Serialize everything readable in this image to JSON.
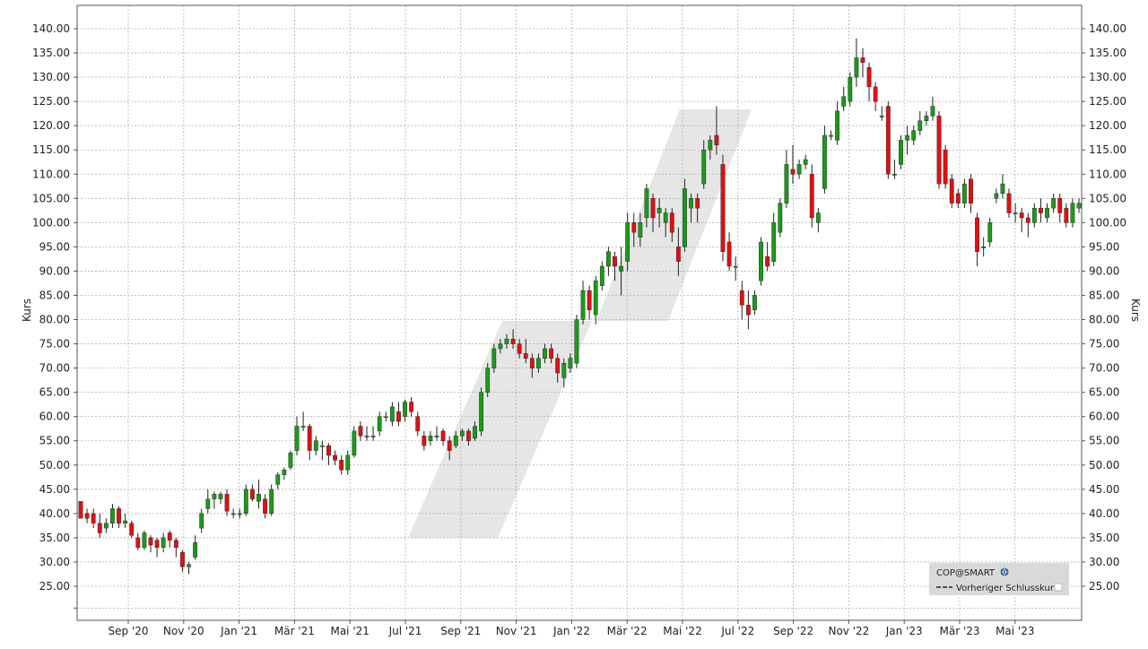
{
  "chart_data": {
    "type": "candlestick",
    "symbol": "COP@SMART",
    "ylabel_left": "Kurs",
    "ylabel_right": "Kurs",
    "ylim": [
      20,
      142
    ],
    "y_ticks": [
      "25.00",
      "30.00",
      "35.00",
      "40.00",
      "45.00",
      "50.00",
      "55.00",
      "60.00",
      "65.00",
      "70.00",
      "75.00",
      "80.00",
      "85.00",
      "90.00",
      "95.00",
      "100.00",
      "105.00",
      "110.00",
      "115.00",
      "120.00",
      "125.00",
      "130.00",
      "135.00",
      "140.00"
    ],
    "x_ticks": [
      "Sep '20",
      "Nov '20",
      "Jan '21",
      "Mär '21",
      "Mai '21",
      "Jul '21",
      "Sep '21",
      "Nov '21",
      "Jan '22",
      "Mär '22",
      "Mai '22",
      "Jul '22",
      "Sep '22",
      "Nov '22",
      "Jan '23",
      "Mär '23",
      "Mai '23"
    ],
    "grid": true,
    "legend": {
      "position": "bottom-right",
      "title": "COP@SMART",
      "items": [
        "Vorheriger Schlusskurs"
      ]
    },
    "colors": {
      "up": "#1a9a1a",
      "down": "#e01010",
      "wick": "#222222",
      "grid": "#b0b0b0",
      "channel": "#e8e8e8",
      "legend_bg": "#d9d9d9"
    },
    "series": [
      {
        "values": [
          42.5,
          39,
          41,
          39
        ]
      },
      {
        "values": [
          40,
          39,
          41,
          38
        ]
      },
      {
        "values": [
          40,
          38,
          41,
          37
        ]
      },
      {
        "values": [
          38,
          36,
          40,
          35
        ]
      },
      {
        "values": [
          37,
          38,
          39,
          36
        ]
      },
      {
        "values": [
          38,
          41,
          42,
          37
        ]
      },
      {
        "values": [
          41,
          38,
          41.5,
          37
        ]
      },
      {
        "values": [
          38,
          38.5,
          40,
          37
        ]
      },
      {
        "values": [
          38,
          35.5,
          38.5,
          35
        ]
      },
      {
        "values": [
          35,
          33,
          36,
          32.5
        ]
      },
      {
        "values": [
          33,
          36,
          36.5,
          32.5
        ]
      },
      {
        "values": [
          35,
          33.5,
          35.5,
          32
        ]
      },
      {
        "values": [
          34.5,
          33,
          35,
          31
        ]
      },
      {
        "values": [
          33,
          35,
          36,
          32
        ]
      },
      {
        "values": [
          36,
          34.5,
          36.5,
          33
        ]
      },
      {
        "values": [
          34.5,
          33,
          35,
          31
        ]
      },
      {
        "values": [
          32,
          29,
          32.5,
          28
        ]
      },
      {
        "values": [
          29,
          29.5,
          30,
          27.5
        ]
      },
      {
        "values": [
          31,
          34,
          35.5,
          30.5
        ]
      },
      {
        "values": [
          37,
          40,
          41,
          36
        ]
      },
      {
        "values": [
          41,
          43,
          45,
          40
        ]
      },
      {
        "values": [
          43,
          44,
          44.5,
          41
        ]
      },
      {
        "values": [
          43,
          44,
          44.5,
          42
        ]
      },
      {
        "values": [
          44,
          40.5,
          45,
          39.5
        ]
      },
      {
        "values": [
          40,
          40,
          41,
          39
        ]
      },
      {
        "values": [
          40,
          40,
          41,
          39
        ]
      },
      {
        "values": [
          40,
          45,
          46,
          39.5
        ]
      },
      {
        "values": [
          45,
          43,
          46,
          42.5
        ]
      },
      {
        "values": [
          42.5,
          44,
          47,
          41
        ]
      },
      {
        "values": [
          43,
          40,
          44,
          39
        ]
      },
      {
        "values": [
          40,
          45,
          46,
          39.5
        ]
      },
      {
        "values": [
          46,
          48,
          48.5,
          45
        ]
      },
      {
        "values": [
          48,
          49,
          49.5,
          47
        ]
      },
      {
        "values": [
          49.5,
          52.5,
          53,
          49
        ]
      },
      {
        "values": [
          53,
          58,
          60,
          52
        ]
      },
      {
        "values": [
          58,
          58,
          61,
          57
        ]
      },
      {
        "values": [
          58,
          53,
          58.5,
          51
        ]
      },
      {
        "values": [
          53,
          55,
          56,
          52
        ]
      },
      {
        "values": [
          54,
          54,
          55,
          51
        ]
      },
      {
        "values": [
          54,
          52,
          54.5,
          50
        ]
      },
      {
        "values": [
          52,
          51,
          53,
          50
        ]
      },
      {
        "values": [
          51,
          49,
          52,
          48
        ]
      },
      {
        "values": [
          49,
          52,
          53,
          48
        ]
      },
      {
        "values": [
          52,
          57,
          58,
          51.5
        ]
      },
      {
        "values": [
          58,
          56,
          59,
          55
        ]
      },
      {
        "values": [
          56,
          56,
          58,
          55
        ]
      },
      {
        "values": [
          56,
          56,
          58,
          55
        ]
      },
      {
        "values": [
          57,
          60,
          61,
          56
        ]
      },
      {
        "values": [
          60,
          60,
          61,
          59
        ]
      },
      {
        "values": [
          59,
          62,
          63,
          58
        ]
      },
      {
        "values": [
          61,
          59,
          63,
          58
        ]
      },
      {
        "values": [
          60,
          63,
          63.5,
          59
        ]
      },
      {
        "values": [
          63,
          61,
          64,
          60
        ]
      },
      {
        "values": [
          60,
          57,
          61,
          56
        ]
      },
      {
        "values": [
          56,
          54,
          57,
          53
        ]
      },
      {
        "values": [
          55,
          56,
          57,
          54
        ]
      },
      {
        "values": [
          56,
          56,
          58,
          55
        ]
      },
      {
        "values": [
          57,
          55,
          57.5,
          54
        ]
      },
      {
        "values": [
          55,
          53,
          56,
          51
        ]
      },
      {
        "values": [
          54,
          56,
          57,
          53.5
        ]
      },
      {
        "values": [
          56,
          57,
          57.5,
          55
        ]
      },
      {
        "values": [
          57,
          55,
          57.5,
          54
        ]
      },
      {
        "values": [
          55.5,
          58,
          59,
          55
        ]
      },
      {
        "values": [
          57,
          65,
          66,
          56
        ]
      },
      {
        "values": [
          65,
          70,
          71,
          64
        ]
      },
      {
        "values": [
          70,
          74,
          75,
          69
        ]
      },
      {
        "values": [
          74,
          75,
          76,
          73
        ]
      },
      {
        "values": [
          75,
          76,
          77,
          74
        ]
      },
      {
        "values": [
          76,
          75,
          78,
          74
        ]
      },
      {
        "values": [
          75,
          73,
          76,
          72
        ]
      },
      {
        "values": [
          73,
          72,
          76,
          71
        ]
      },
      {
        "values": [
          72,
          70,
          73,
          68
        ]
      },
      {
        "values": [
          70,
          72,
          73,
          69
        ]
      },
      {
        "values": [
          72,
          74,
          75,
          71
        ]
      },
      {
        "values": [
          74,
          72,
          75,
          71
        ]
      },
      {
        "values": [
          72,
          69,
          73,
          67
        ]
      },
      {
        "values": [
          68,
          71,
          72,
          66
        ]
      },
      {
        "values": [
          70,
          72,
          73,
          69
        ]
      },
      {
        "values": [
          71,
          80,
          81,
          70
        ]
      },
      {
        "values": [
          80,
          86,
          88,
          79
        ]
      },
      {
        "values": [
          86,
          82,
          87,
          80
        ]
      },
      {
        "values": [
          81,
          88,
          89,
          79
        ]
      },
      {
        "values": [
          87,
          91,
          92,
          86
        ]
      },
      {
        "values": [
          91,
          94,
          95,
          89
        ]
      },
      {
        "values": [
          93,
          91,
          94,
          88
        ]
      },
      {
        "values": [
          90,
          91,
          95,
          85
        ]
      },
      {
        "values": [
          92,
          100,
          102,
          90
        ]
      },
      {
        "values": [
          100,
          98,
          102,
          95
        ]
      },
      {
        "values": [
          97,
          100,
          102,
          95
        ]
      },
      {
        "values": [
          101,
          107,
          108,
          99
        ]
      },
      {
        "values": [
          105,
          101,
          106,
          98
        ]
      },
      {
        "values": [
          102,
          103,
          105,
          99
        ]
      },
      {
        "values": [
          100,
          102,
          103,
          97
        ]
      },
      {
        "values": [
          102,
          98,
          103,
          96
        ]
      },
      {
        "values": [
          95,
          92,
          99,
          89
        ]
      },
      {
        "values": [
          95,
          107,
          109,
          94
        ]
      },
      {
        "values": [
          103,
          105,
          106,
          100
        ]
      },
      {
        "values": [
          105,
          103,
          106,
          100
        ]
      },
      {
        "values": [
          108,
          115,
          117,
          107
        ]
      },
      {
        "values": [
          115,
          117,
          118,
          113
        ]
      },
      {
        "values": [
          118,
          116,
          124,
          114
        ]
      },
      {
        "values": [
          112,
          94,
          114,
          92
        ]
      },
      {
        "values": [
          96,
          91,
          98,
          90
        ]
      },
      {
        "values": [
          91,
          91,
          93,
          88
        ]
      },
      {
        "values": [
          86,
          83,
          88,
          80
        ]
      },
      {
        "values": [
          83,
          81,
          86,
          78
        ]
      },
      {
        "values": [
          82,
          85,
          86,
          81
        ]
      },
      {
        "values": [
          88,
          96,
          97,
          87
        ]
      },
      {
        "values": [
          93,
          91,
          96,
          90
        ]
      },
      {
        "values": [
          92,
          100,
          102,
          91
        ]
      },
      {
        "values": [
          98,
          104,
          105,
          97
        ]
      },
      {
        "values": [
          104,
          112,
          115,
          103
        ]
      },
      {
        "values": [
          111,
          110,
          116,
          108
        ]
      },
      {
        "values": [
          110,
          112,
          113,
          109
        ]
      },
      {
        "values": [
          112,
          113,
          114,
          111
        ]
      },
      {
        "values": [
          110,
          101,
          112,
          99
        ]
      },
      {
        "values": [
          100,
          102,
          103,
          98
        ]
      },
      {
        "values": [
          107,
          118,
          120,
          106
        ]
      },
      {
        "values": [
          118,
          118,
          119,
          117
        ]
      },
      {
        "values": [
          117,
          123,
          125,
          116
        ]
      },
      {
        "values": [
          124,
          126,
          128,
          123
        ]
      },
      {
        "values": [
          125,
          130,
          131,
          124
        ]
      },
      {
        "values": [
          130,
          134,
          138,
          128
        ]
      },
      {
        "values": [
          134,
          133,
          136,
          130
        ]
      },
      {
        "values": [
          132,
          128,
          133,
          125
        ]
      },
      {
        "values": [
          128,
          125,
          129,
          123
        ]
      },
      {
        "values": [
          122,
          122,
          124,
          121
        ]
      },
      {
        "values": [
          124,
          110,
          125,
          109
        ]
      },
      {
        "values": [
          110,
          110,
          113,
          109
        ]
      },
      {
        "values": [
          112,
          117,
          118,
          111
        ]
      },
      {
        "values": [
          117,
          118,
          120,
          114
        ]
      },
      {
        "values": [
          117,
          119,
          120,
          116
        ]
      },
      {
        "values": [
          119,
          121,
          123,
          118
        ]
      },
      {
        "values": [
          121,
          122,
          123,
          120
        ]
      },
      {
        "values": [
          122,
          124,
          126,
          121
        ]
      },
      {
        "values": [
          122,
          108,
          123,
          107
        ]
      },
      {
        "values": [
          115,
          108,
          116,
          107
        ]
      },
      {
        "values": [
          109,
          104,
          110,
          103
        ]
      },
      {
        "values": [
          106,
          104,
          107,
          103
        ]
      },
      {
        "values": [
          104,
          108,
          109,
          103
        ]
      },
      {
        "values": [
          109,
          104,
          110,
          102
        ]
      },
      {
        "values": [
          101,
          94,
          102,
          91
        ]
      },
      {
        "values": [
          95,
          95,
          97,
          93
        ]
      },
      {
        "values": [
          96,
          100,
          101,
          95
        ]
      },
      {
        "values": [
          105,
          106,
          107,
          104
        ]
      },
      {
        "values": [
          106,
          108,
          110,
          105
        ]
      },
      {
        "values": [
          106,
          102,
          107,
          101
        ]
      },
      {
        "values": [
          102,
          102,
          104,
          100
        ]
      },
      {
        "values": [
          102,
          101,
          103,
          98
        ]
      },
      {
        "values": [
          101,
          100,
          102,
          97
        ]
      },
      {
        "values": [
          100,
          103,
          104,
          99
        ]
      },
      {
        "values": [
          103,
          102,
          105,
          100
        ]
      },
      {
        "values": [
          101,
          103,
          104,
          100
        ]
      },
      {
        "values": [
          103,
          105,
          106,
          102
        ]
      },
      {
        "values": [
          105,
          102,
          106,
          100
        ]
      },
      {
        "values": [
          103,
          100,
          104,
          99
        ]
      },
      {
        "values": [
          100,
          104,
          105,
          99
        ]
      },
      {
        "values": [
          103,
          104,
          105,
          102
        ]
      }
    ]
  }
}
